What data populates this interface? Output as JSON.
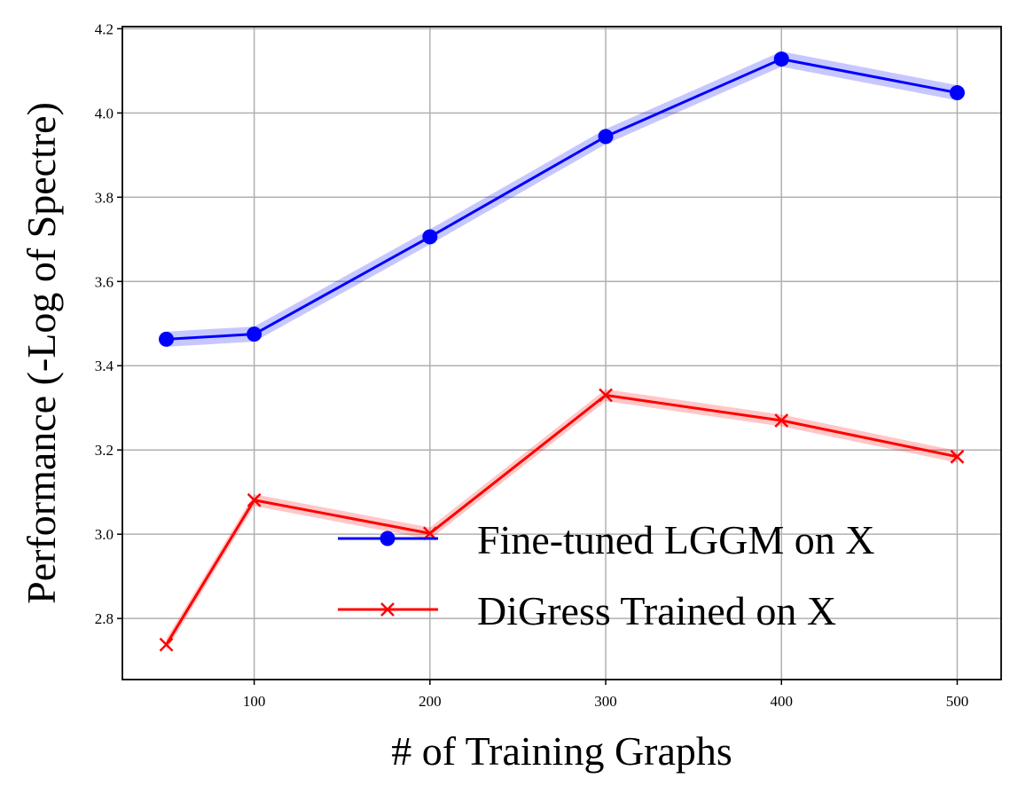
{
  "chart_data": {
    "type": "line",
    "xlabel": "# of Training Graphs",
    "ylabel": "Performance (-Log of Spectre)",
    "xlim": [
      25,
      525
    ],
    "ylim": [
      2.655,
      4.205
    ],
    "x_ticks": [
      100,
      200,
      300,
      400,
      500
    ],
    "y_ticks": [
      2.8,
      3.0,
      3.2,
      3.4,
      3.6,
      3.8,
      4.0,
      4.2
    ],
    "x_tick_labels": [
      "100",
      "200",
      "300",
      "400",
      "500"
    ],
    "y_tick_labels": [
      "2.8",
      "3.0",
      "3.2",
      "3.4",
      "3.6",
      "3.8",
      "4.0",
      "4.2"
    ],
    "grid": true,
    "legend_position": "lower-right",
    "x": [
      50,
      100,
      200,
      300,
      400,
      500
    ],
    "series": [
      {
        "name": "Fine-tuned LGGM on X",
        "color": "#0000ff",
        "marker": "circle",
        "values": [
          3.463,
          3.475,
          3.706,
          3.944,
          4.128,
          4.048
        ],
        "band": 0.018
      },
      {
        "name": "DiGress Trained on X",
        "color": "#ff0000",
        "marker": "x",
        "values": [
          2.738,
          3.081,
          3.002,
          3.33,
          3.27,
          3.184
        ],
        "band": 0.014
      }
    ]
  }
}
